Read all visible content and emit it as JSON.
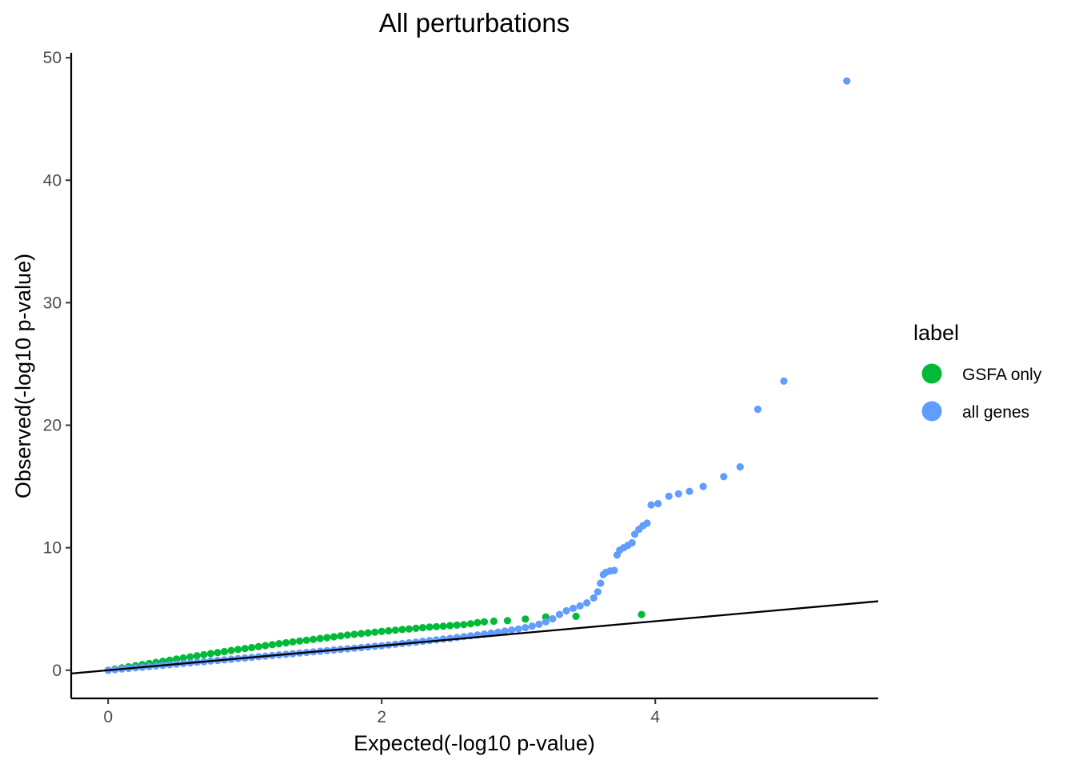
{
  "chart_data": {
    "type": "scatter",
    "title": "All perturbations",
    "xlabel": "Expected(-log10 p-value)",
    "ylabel": "Observed(-log10 p-value)",
    "xlim": [
      -0.27,
      5.63
    ],
    "ylim": [
      -2.3,
      50.4
    ],
    "xticks": [
      0,
      2,
      4
    ],
    "yticks": [
      0,
      10,
      20,
      30,
      40,
      50
    ],
    "reference_line": {
      "slope": 1,
      "intercept": 0,
      "color": "#000000"
    },
    "legend": {
      "title": "label",
      "position": "right"
    },
    "series": [
      {
        "name": "GSFA only",
        "color": "#00BA38",
        "points": [
          [
            0.0,
            0.0
          ],
          [
            0.05,
            0.1
          ],
          [
            0.1,
            0.19
          ],
          [
            0.15,
            0.28
          ],
          [
            0.2,
            0.37
          ],
          [
            0.25,
            0.46
          ],
          [
            0.3,
            0.55
          ],
          [
            0.35,
            0.64
          ],
          [
            0.4,
            0.73
          ],
          [
            0.45,
            0.82
          ],
          [
            0.5,
            0.91
          ],
          [
            0.55,
            1.0
          ],
          [
            0.6,
            1.09
          ],
          [
            0.65,
            1.18
          ],
          [
            0.7,
            1.27
          ],
          [
            0.75,
            1.36
          ],
          [
            0.8,
            1.44
          ],
          [
            0.85,
            1.52
          ],
          [
            0.9,
            1.61
          ],
          [
            0.95,
            1.69
          ],
          [
            1.0,
            1.77
          ],
          [
            1.05,
            1.85
          ],
          [
            1.1,
            1.93
          ],
          [
            1.15,
            2.01
          ],
          [
            1.2,
            2.09
          ],
          [
            1.25,
            2.17
          ],
          [
            1.3,
            2.24
          ],
          [
            1.35,
            2.31
          ],
          [
            1.4,
            2.38
          ],
          [
            1.45,
            2.45
          ],
          [
            1.5,
            2.52
          ],
          [
            1.55,
            2.59
          ],
          [
            1.6,
            2.66
          ],
          [
            1.65,
            2.73
          ],
          [
            1.7,
            2.8
          ],
          [
            1.75,
            2.87
          ],
          [
            1.8,
            2.93
          ],
          [
            1.85,
            2.99
          ],
          [
            1.9,
            3.05
          ],
          [
            1.95,
            3.11
          ],
          [
            2.0,
            3.17
          ],
          [
            2.05,
            3.22
          ],
          [
            2.1,
            3.27
          ],
          [
            2.15,
            3.32
          ],
          [
            2.2,
            3.37
          ],
          [
            2.25,
            3.42
          ],
          [
            2.3,
            3.47
          ],
          [
            2.35,
            3.52
          ],
          [
            2.4,
            3.56
          ],
          [
            2.45,
            3.6
          ],
          [
            2.5,
            3.64
          ],
          [
            2.55,
            3.68
          ],
          [
            2.6,
            3.72
          ],
          [
            2.65,
            3.79
          ],
          [
            2.7,
            3.88
          ],
          [
            2.75,
            3.95
          ],
          [
            2.82,
            4.0
          ],
          [
            2.92,
            4.05
          ],
          [
            3.05,
            4.18
          ],
          [
            3.2,
            4.35
          ],
          [
            3.42,
            4.4
          ],
          [
            3.9,
            4.55
          ]
        ]
      },
      {
        "name": "all genes",
        "color": "#619CFF",
        "points": [
          [
            0.0,
            0.0
          ],
          [
            0.05,
            0.05
          ],
          [
            0.1,
            0.1
          ],
          [
            0.15,
            0.15
          ],
          [
            0.2,
            0.2
          ],
          [
            0.25,
            0.25
          ],
          [
            0.3,
            0.3
          ],
          [
            0.35,
            0.35
          ],
          [
            0.4,
            0.4
          ],
          [
            0.45,
            0.45
          ],
          [
            0.5,
            0.5
          ],
          [
            0.55,
            0.55
          ],
          [
            0.6,
            0.6
          ],
          [
            0.65,
            0.65
          ],
          [
            0.7,
            0.7
          ],
          [
            0.75,
            0.75
          ],
          [
            0.8,
            0.8
          ],
          [
            0.85,
            0.85
          ],
          [
            0.9,
            0.9
          ],
          [
            0.95,
            0.95
          ],
          [
            1.0,
            1.0
          ],
          [
            1.05,
            1.05
          ],
          [
            1.1,
            1.1
          ],
          [
            1.15,
            1.15
          ],
          [
            1.2,
            1.2
          ],
          [
            1.25,
            1.25
          ],
          [
            1.3,
            1.3
          ],
          [
            1.35,
            1.35
          ],
          [
            1.4,
            1.4
          ],
          [
            1.45,
            1.45
          ],
          [
            1.5,
            1.5
          ],
          [
            1.55,
            1.55
          ],
          [
            1.6,
            1.6
          ],
          [
            1.65,
            1.65
          ],
          [
            1.7,
            1.7
          ],
          [
            1.75,
            1.75
          ],
          [
            1.8,
            1.8
          ],
          [
            1.85,
            1.85
          ],
          [
            1.9,
            1.9
          ],
          [
            1.95,
            1.95
          ],
          [
            2.0,
            2.0
          ],
          [
            2.05,
            2.06
          ],
          [
            2.1,
            2.12
          ],
          [
            2.15,
            2.18
          ],
          [
            2.2,
            2.24
          ],
          [
            2.25,
            2.3
          ],
          [
            2.3,
            2.36
          ],
          [
            2.35,
            2.42
          ],
          [
            2.4,
            2.48
          ],
          [
            2.45,
            2.54
          ],
          [
            2.5,
            2.6
          ],
          [
            2.55,
            2.67
          ],
          [
            2.6,
            2.74
          ],
          [
            2.65,
            2.81
          ],
          [
            2.7,
            2.88
          ],
          [
            2.75,
            2.95
          ],
          [
            2.8,
            3.03
          ],
          [
            2.85,
            3.11
          ],
          [
            2.9,
            3.19
          ],
          [
            2.95,
            3.28
          ],
          [
            3.0,
            3.37
          ],
          [
            3.05,
            3.47
          ],
          [
            3.1,
            3.6
          ],
          [
            3.15,
            3.75
          ],
          [
            3.2,
            3.95
          ],
          [
            3.25,
            4.2
          ],
          [
            3.3,
            4.55
          ],
          [
            3.35,
            4.85
          ],
          [
            3.4,
            5.05
          ],
          [
            3.45,
            5.25
          ],
          [
            3.5,
            5.5
          ],
          [
            3.55,
            5.9
          ],
          [
            3.58,
            6.4
          ],
          [
            3.6,
            7.1
          ],
          [
            3.62,
            7.8
          ],
          [
            3.64,
            8.0
          ],
          [
            3.67,
            8.1
          ],
          [
            3.7,
            8.15
          ],
          [
            3.72,
            9.4
          ],
          [
            3.74,
            9.8
          ],
          [
            3.77,
            10.0
          ],
          [
            3.8,
            10.2
          ],
          [
            3.83,
            10.4
          ],
          [
            3.85,
            11.1
          ],
          [
            3.88,
            11.5
          ],
          [
            3.91,
            11.8
          ],
          [
            3.94,
            12.0
          ],
          [
            3.97,
            13.5
          ],
          [
            4.02,
            13.6
          ],
          [
            4.1,
            14.2
          ],
          [
            4.17,
            14.4
          ],
          [
            4.25,
            14.6
          ],
          [
            4.35,
            15.0
          ],
          [
            4.5,
            15.8
          ],
          [
            4.62,
            16.6
          ],
          [
            4.75,
            21.3
          ],
          [
            4.94,
            23.6
          ],
          [
            5.4,
            48.1
          ]
        ]
      }
    ]
  }
}
